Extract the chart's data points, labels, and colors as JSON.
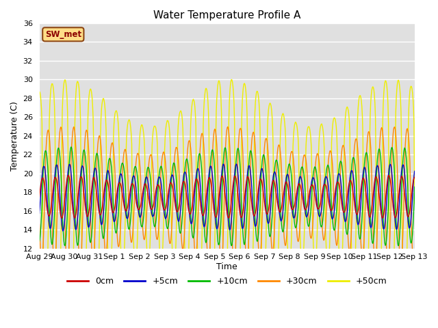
{
  "title": "Water Temperature Profile A",
  "xlabel": "Time",
  "ylabel": "Temperature (C)",
  "ylim": [
    12,
    36
  ],
  "yticks": [
    12,
    14,
    16,
    18,
    20,
    22,
    24,
    26,
    28,
    30,
    32,
    34,
    36
  ],
  "bg_color": "#e0e0e0",
  "fig_color": "#ffffff",
  "grid_color": "#ffffff",
  "label_box_text": "SW_met",
  "label_box_facecolor": "#ffdd88",
  "label_box_edgecolor": "#8b4513",
  "colors": {
    "0cm": "#cc0000",
    "+5cm": "#0000cc",
    "+10cm": "#00bb00",
    "+30cm": "#ff8800",
    "+50cm": "#eeee00"
  },
  "x_tick_labels": [
    "Aug 29",
    "Aug 30",
    "Aug 31",
    "Sep 1",
    "Sep 2",
    "Sep 3",
    "Sep 4",
    "Sep 5",
    "Sep 6",
    "Sep 7",
    "Sep 8",
    "Sep 9",
    "Sep 10",
    "Sep 11",
    "Sep 12",
    "Sep 13"
  ],
  "n_days": 15,
  "points_per_day": 48,
  "base_temp": 17.5,
  "trend_amp": 1.0,
  "amp_0cm": 1.8,
  "amp_5cm": 2.8,
  "amp_10cm": 4.2,
  "amp_30cm": 6.0,
  "amp_50cm": 10.0,
  "phase_0cm": 0.0,
  "phase_5cm": 0.05,
  "phase_10cm": 0.12,
  "phase_30cm": 0.22,
  "phase_50cm": 0.38,
  "sharpness_50cm": 4.0,
  "sharpness_30cm": 2.0,
  "freq_per_day": 1.95
}
